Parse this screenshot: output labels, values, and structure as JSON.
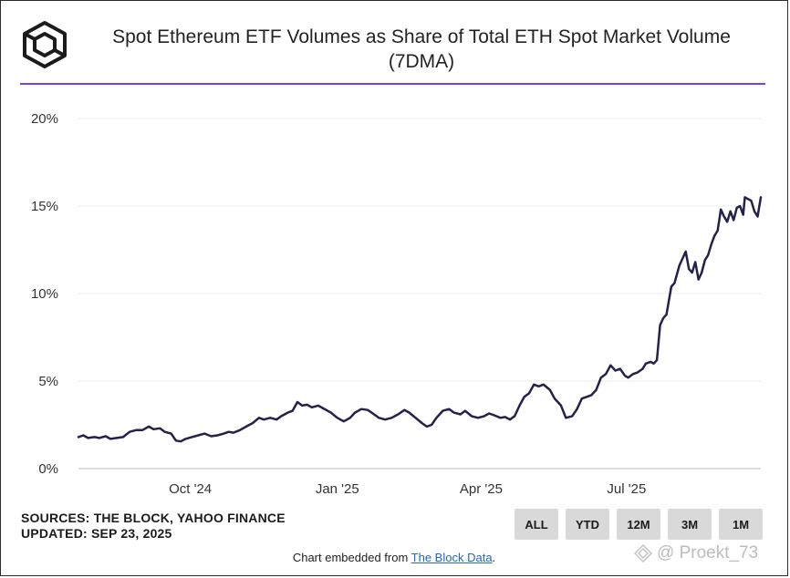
{
  "header": {
    "title": "Spot Ethereum ETF Volumes as Share of Total ETH Spot Market Volume (7DMA)"
  },
  "footer": {
    "sources": "SOURCES: THE BLOCK, YAHOO FINANCE",
    "updated": "UPDATED: SEP 23, 2025",
    "buttons": [
      "ALL",
      "YTD",
      "12M",
      "3M",
      "1M"
    ],
    "embed_prefix": "Chart embedded from ",
    "embed_link": "The Block Data",
    "embed_suffix": "."
  },
  "watermark": {
    "text": "@ Proekt_73"
  },
  "colors": {
    "line": "#24224a",
    "accent_rule": "#7b3fe4",
    "grid": "#eeeeee"
  },
  "chart_data": {
    "type": "line",
    "title": "Spot Ethereum ETF Volumes as Share of Total ETH Spot Market Volume (7DMA)",
    "xlabel": "",
    "ylabel": "",
    "x_start": "2024-07-23",
    "x_end": "2025-09-23",
    "x_ticks": [
      {
        "date": "2024-10-01",
        "label": "Oct '24"
      },
      {
        "date": "2025-01-01",
        "label": "Jan '25"
      },
      {
        "date": "2025-04-01",
        "label": "Apr '25"
      },
      {
        "date": "2025-07-01",
        "label": "Jul '25"
      }
    ],
    "y_ticks": [
      {
        "value": 0,
        "label": "0%"
      },
      {
        "value": 5,
        "label": "5%"
      },
      {
        "value": 10,
        "label": "10%"
      },
      {
        "value": 15,
        "label": "15%"
      },
      {
        "value": 20,
        "label": "20%"
      }
    ],
    "ylim": [
      0,
      20
    ],
    "grid": true,
    "series": [
      {
        "name": "",
        "points": [
          [
            "2024-07-23",
            1.8
          ],
          [
            "2024-07-26",
            1.9
          ],
          [
            "2024-07-29",
            1.75
          ],
          [
            "2024-08-02",
            1.8
          ],
          [
            "2024-08-05",
            1.75
          ],
          [
            "2024-08-09",
            1.85
          ],
          [
            "2024-08-12",
            1.7
          ],
          [
            "2024-08-16",
            1.75
          ],
          [
            "2024-08-20",
            1.8
          ],
          [
            "2024-08-24",
            2.1
          ],
          [
            "2024-08-28",
            2.2
          ],
          [
            "2024-09-01",
            2.2
          ],
          [
            "2024-09-05",
            2.4
          ],
          [
            "2024-09-08",
            2.25
          ],
          [
            "2024-09-12",
            2.3
          ],
          [
            "2024-09-15",
            2.1
          ],
          [
            "2024-09-19",
            2.0
          ],
          [
            "2024-09-22",
            1.6
          ],
          [
            "2024-09-25",
            1.55
          ],
          [
            "2024-09-28",
            1.7
          ],
          [
            "2024-10-02",
            1.8
          ],
          [
            "2024-10-06",
            1.9
          ],
          [
            "2024-10-10",
            2.0
          ],
          [
            "2024-10-14",
            1.85
          ],
          [
            "2024-10-18",
            1.9
          ],
          [
            "2024-10-22",
            2.0
          ],
          [
            "2024-10-25",
            2.1
          ],
          [
            "2024-10-28",
            2.05
          ],
          [
            "2024-11-01",
            2.2
          ],
          [
            "2024-11-05",
            2.4
          ],
          [
            "2024-11-09",
            2.6
          ],
          [
            "2024-11-13",
            2.9
          ],
          [
            "2024-11-16",
            2.8
          ],
          [
            "2024-11-20",
            2.9
          ],
          [
            "2024-11-24",
            2.8
          ],
          [
            "2024-11-27",
            3.0
          ],
          [
            "2024-12-01",
            3.2
          ],
          [
            "2024-12-04",
            3.3
          ],
          [
            "2024-12-07",
            3.8
          ],
          [
            "2024-12-10",
            3.6
          ],
          [
            "2024-12-13",
            3.65
          ],
          [
            "2024-12-16",
            3.5
          ],
          [
            "2024-12-20",
            3.6
          ],
          [
            "2024-12-24",
            3.4
          ],
          [
            "2024-12-28",
            3.2
          ],
          [
            "2025-01-01",
            2.9
          ],
          [
            "2025-01-05",
            2.7
          ],
          [
            "2025-01-09",
            2.9
          ],
          [
            "2025-01-12",
            3.2
          ],
          [
            "2025-01-16",
            3.4
          ],
          [
            "2025-01-20",
            3.35
          ],
          [
            "2025-01-24",
            3.1
          ],
          [
            "2025-01-27",
            2.9
          ],
          [
            "2025-01-31",
            2.8
          ],
          [
            "2025-02-04",
            2.9
          ],
          [
            "2025-02-08",
            3.1
          ],
          [
            "2025-02-12",
            3.35
          ],
          [
            "2025-02-15",
            3.2
          ],
          [
            "2025-02-19",
            2.9
          ],
          [
            "2025-02-23",
            2.6
          ],
          [
            "2025-02-26",
            2.4
          ],
          [
            "2025-03-01",
            2.5
          ],
          [
            "2025-03-04",
            2.9
          ],
          [
            "2025-03-08",
            3.3
          ],
          [
            "2025-03-12",
            3.4
          ],
          [
            "2025-03-15",
            3.2
          ],
          [
            "2025-03-19",
            3.1
          ],
          [
            "2025-03-22",
            3.3
          ],
          [
            "2025-03-26",
            3.0
          ],
          [
            "2025-03-30",
            2.9
          ],
          [
            "2025-04-03",
            3.0
          ],
          [
            "2025-04-06",
            3.15
          ],
          [
            "2025-04-09",
            3.05
          ],
          [
            "2025-04-13",
            2.9
          ],
          [
            "2025-04-16",
            2.95
          ],
          [
            "2025-04-19",
            2.8
          ],
          [
            "2025-04-22",
            3.0
          ],
          [
            "2025-04-25",
            3.6
          ],
          [
            "2025-04-28",
            4.1
          ],
          [
            "2025-05-01",
            4.3
          ],
          [
            "2025-05-04",
            4.8
          ],
          [
            "2025-05-07",
            4.7
          ],
          [
            "2025-05-10",
            4.8
          ],
          [
            "2025-05-14",
            4.5
          ],
          [
            "2025-05-17",
            4.0
          ],
          [
            "2025-05-21",
            3.6
          ],
          [
            "2025-05-24",
            2.9
          ],
          [
            "2025-05-28",
            3.0
          ],
          [
            "2025-05-31",
            3.4
          ],
          [
            "2025-06-03",
            4.0
          ],
          [
            "2025-06-06",
            4.1
          ],
          [
            "2025-06-09",
            4.2
          ],
          [
            "2025-06-12",
            4.5
          ],
          [
            "2025-06-15",
            5.2
          ],
          [
            "2025-06-18",
            5.4
          ],
          [
            "2025-06-21",
            5.9
          ],
          [
            "2025-06-24",
            5.6
          ],
          [
            "2025-06-27",
            5.7
          ],
          [
            "2025-06-30",
            5.3
          ],
          [
            "2025-07-02",
            5.2
          ],
          [
            "2025-07-05",
            5.4
          ],
          [
            "2025-07-08",
            5.5
          ],
          [
            "2025-07-11",
            5.7
          ],
          [
            "2025-07-13",
            6.0
          ],
          [
            "2025-07-16",
            6.1
          ],
          [
            "2025-07-18",
            6.0
          ],
          [
            "2025-07-20",
            6.2
          ],
          [
            "2025-07-22",
            8.2
          ],
          [
            "2025-07-24",
            8.6
          ],
          [
            "2025-07-26",
            8.8
          ],
          [
            "2025-07-29",
            10.4
          ],
          [
            "2025-07-31",
            10.6
          ],
          [
            "2025-08-03",
            11.6
          ],
          [
            "2025-08-05",
            12.0
          ],
          [
            "2025-08-07",
            12.4
          ],
          [
            "2025-08-09",
            11.4
          ],
          [
            "2025-08-11",
            11.2
          ],
          [
            "2025-08-13",
            11.8
          ],
          [
            "2025-08-15",
            10.8
          ],
          [
            "2025-08-17",
            11.2
          ],
          [
            "2025-08-19",
            11.9
          ],
          [
            "2025-08-21",
            12.2
          ],
          [
            "2025-08-23",
            12.8
          ],
          [
            "2025-08-25",
            13.3
          ],
          [
            "2025-08-27",
            13.6
          ],
          [
            "2025-08-29",
            14.8
          ],
          [
            "2025-08-31",
            14.4
          ],
          [
            "2025-09-02",
            14.1
          ],
          [
            "2025-09-04",
            14.7
          ],
          [
            "2025-09-06",
            14.2
          ],
          [
            "2025-09-08",
            14.9
          ],
          [
            "2025-09-10",
            15.0
          ],
          [
            "2025-09-12",
            14.5
          ],
          [
            "2025-09-13",
            15.5
          ],
          [
            "2025-09-15",
            15.4
          ],
          [
            "2025-09-17",
            15.3
          ],
          [
            "2025-09-19",
            14.7
          ],
          [
            "2025-09-21",
            14.4
          ],
          [
            "2025-09-23",
            15.5
          ]
        ]
      }
    ]
  }
}
